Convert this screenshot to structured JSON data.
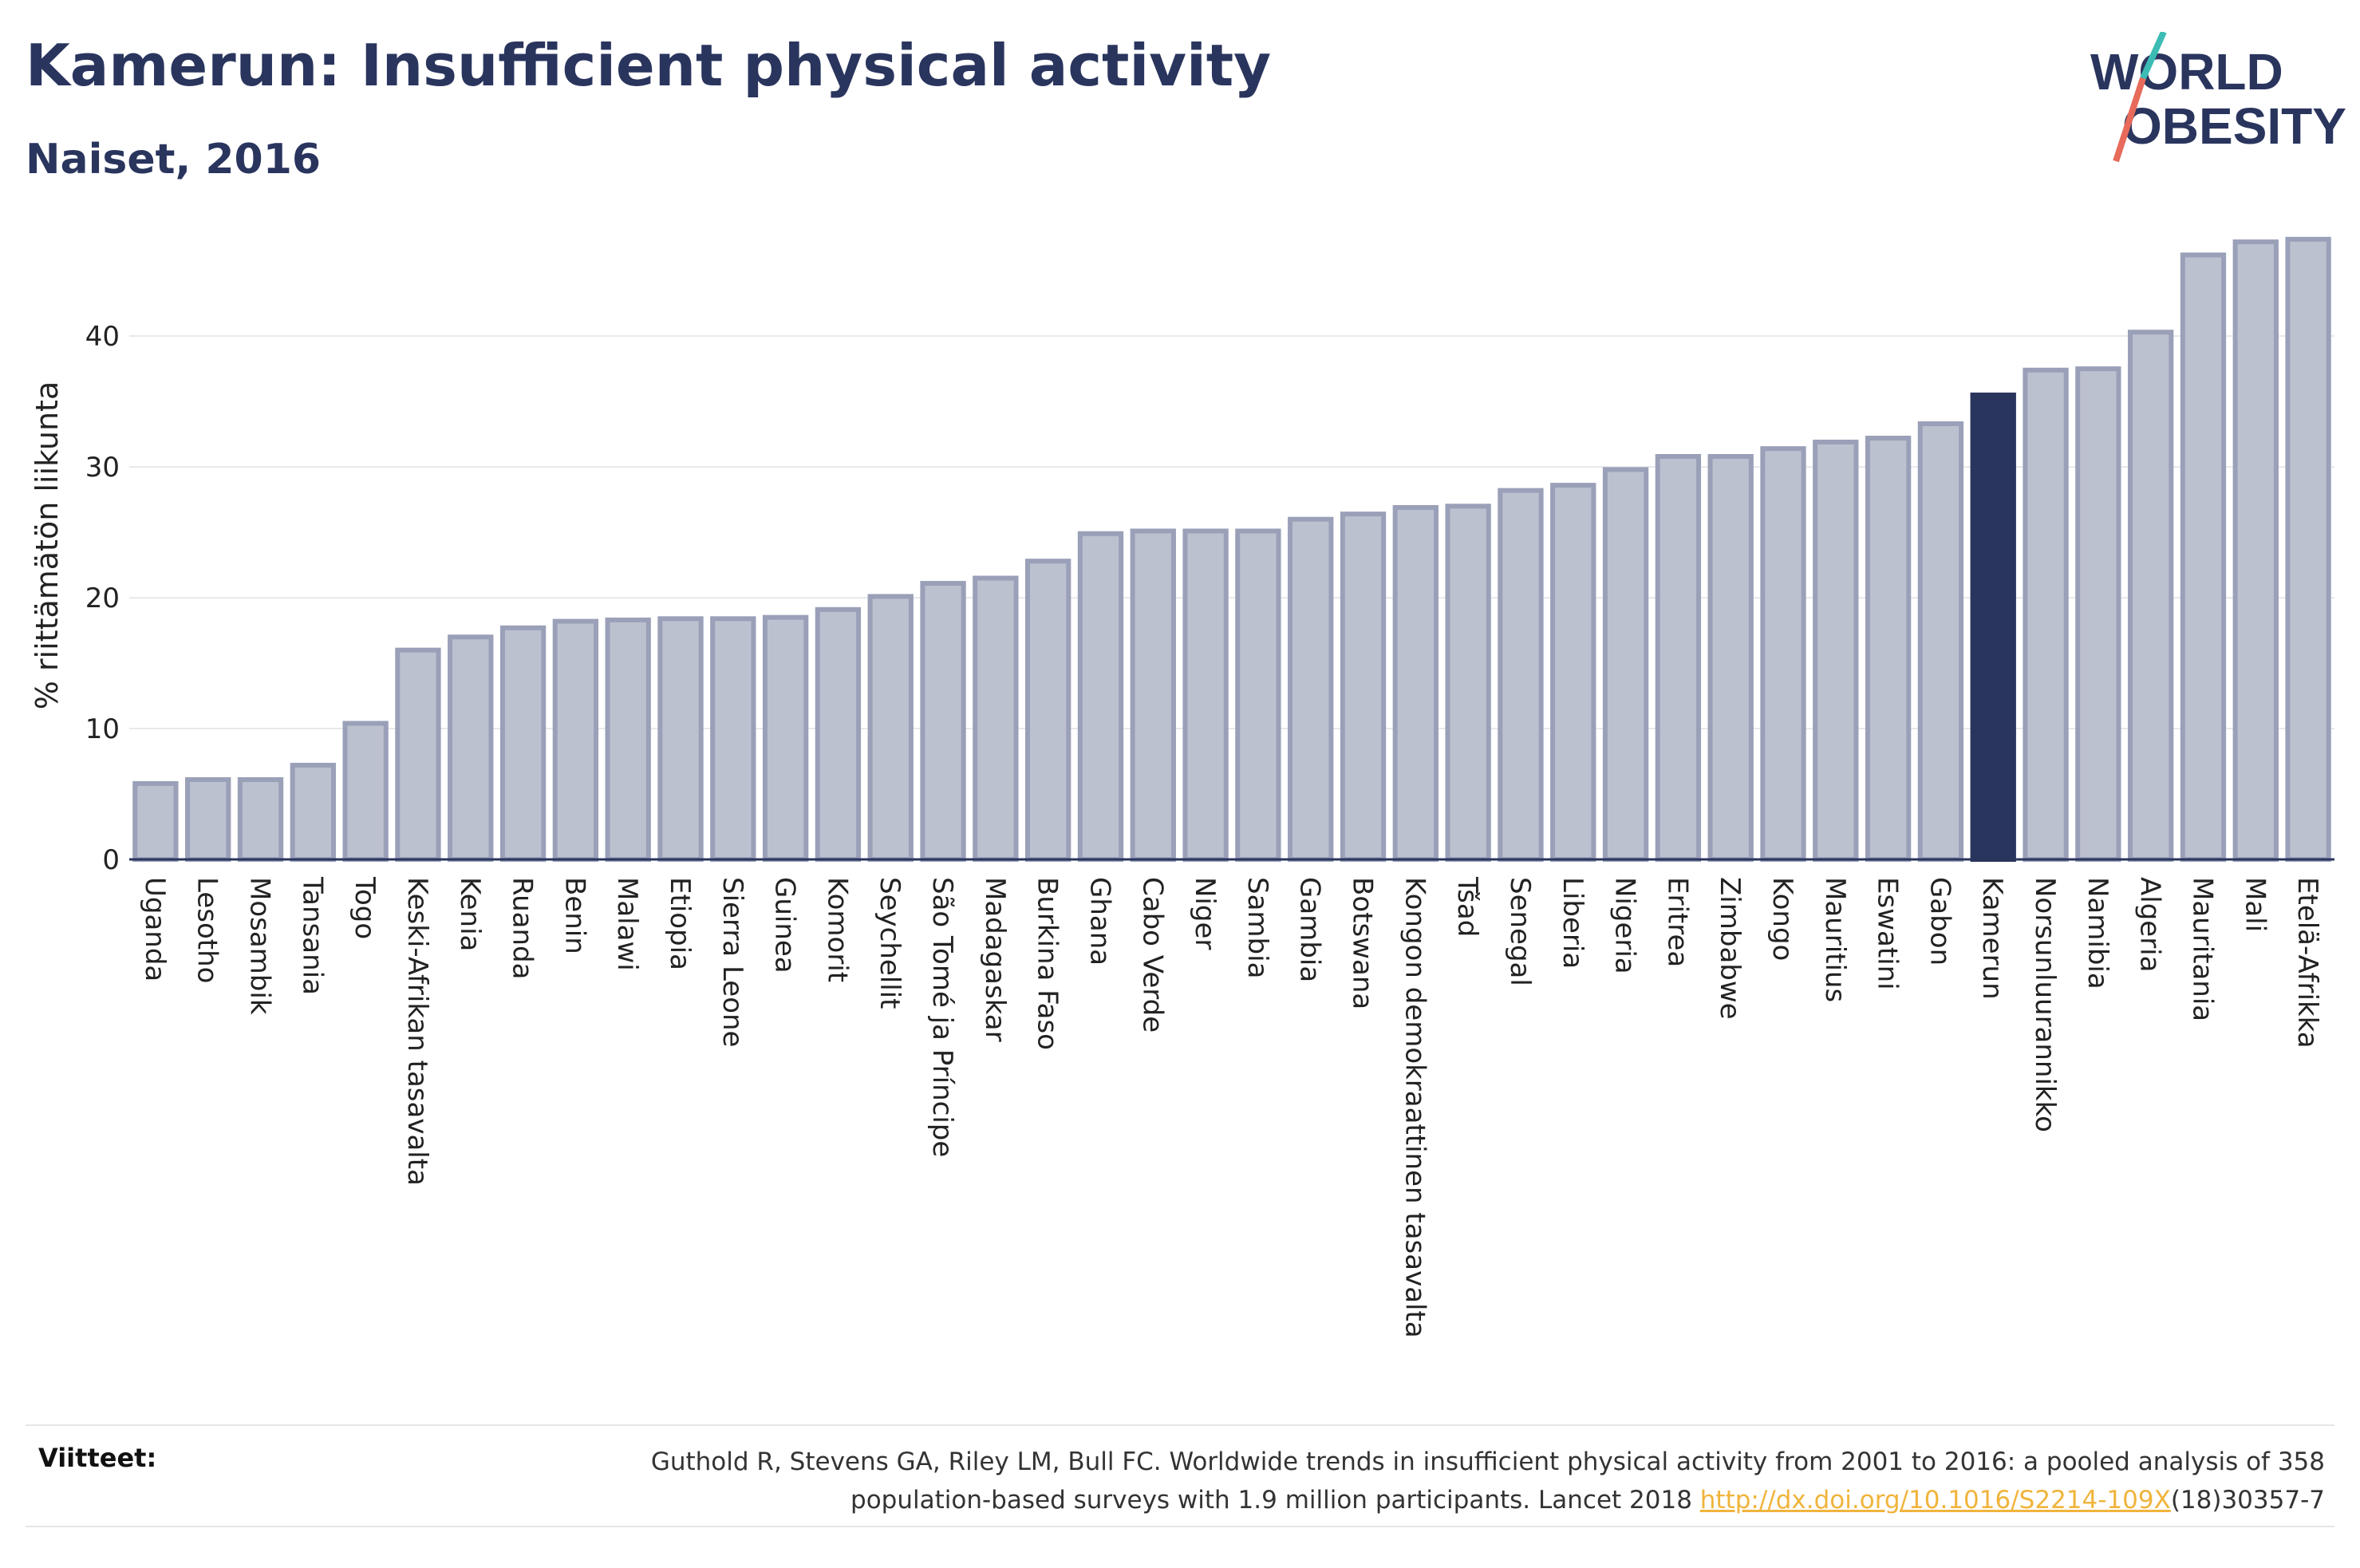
{
  "header": {
    "title": "Kamerun: Insufficient physical activity",
    "subtitle": "Naiset, 2016"
  },
  "logo": {
    "line1": "WORLD",
    "line2": "OBESITY",
    "line1_rest": "RLD",
    "line2_rest": "BESITY",
    "line1_prefix": "W",
    "colors": {
      "text": "#2a355e",
      "slash_top": "#3cbcb4",
      "slash_bottom": "#e86a5a"
    }
  },
  "chart_data": {
    "type": "bar",
    "title": "",
    "xlabel": "",
    "ylabel": "% riittämätön liikunta",
    "ylim": [
      0,
      48
    ],
    "yticks": [
      0,
      10,
      20,
      30,
      40
    ],
    "grid": true,
    "highlight": "Kamerun",
    "colors": {
      "bar": "#bcc1d0",
      "bar_edge": "#9aa0b8",
      "highlight": "#2a355e",
      "grid": "#e8e8ee",
      "axis": "#2a355e"
    },
    "categories": [
      "Uganda",
      "Lesotho",
      "Mosambik",
      "Tansania",
      "Togo",
      "Keski-Afrikan tasavalta",
      "Kenia",
      "Ruanda",
      "Benin",
      "Malawi",
      "Etiopia",
      "Sierra Leone",
      "Guinea",
      "Komorit",
      "Seychellit",
      "São Tomé ja Príncipe",
      "Madagaskar",
      "Burkina Faso",
      "Ghana",
      "Cabo Verde",
      "Niger",
      "Sambia",
      "Gambia",
      "Botswana",
      "Kongon demokraattinen tasavalta",
      "Tšad",
      "Senegal",
      "Liberia",
      "Nigeria",
      "Eritrea",
      "Zimbabwe",
      "Kongo",
      "Mauritius",
      "Eswatini",
      "Gabon",
      "Kamerun",
      "Norsunluurannikko",
      "Namibia",
      "Algeria",
      "Mauritania",
      "Mali",
      "Etelä-Afrikka"
    ],
    "values": [
      5.8,
      6.1,
      6.1,
      7.2,
      10.4,
      16.0,
      17.0,
      17.7,
      18.2,
      18.3,
      18.4,
      18.4,
      18.5,
      19.1,
      20.1,
      21.1,
      21.5,
      22.8,
      24.9,
      25.1,
      25.1,
      25.1,
      26.0,
      26.4,
      26.9,
      27.0,
      28.2,
      28.6,
      29.8,
      30.8,
      30.8,
      31.4,
      31.9,
      32.2,
      33.3,
      35.5,
      37.4,
      37.5,
      40.3,
      46.2,
      47.2,
      47.4
    ]
  },
  "footer": {
    "label": "Viitteet:",
    "source_text": "Guthold R, Stevens GA, Riley LM, Bull FC. Worldwide trends in insufficient physical activity from 2001 to 2016: a pooled analysis of 358 population-based surveys with 1.9 million participants. Lancet 2018 ",
    "link_text": "http://dx.doi.org/10.1016/S2214-109X",
    "source_suffix": "(18)30357-7"
  }
}
